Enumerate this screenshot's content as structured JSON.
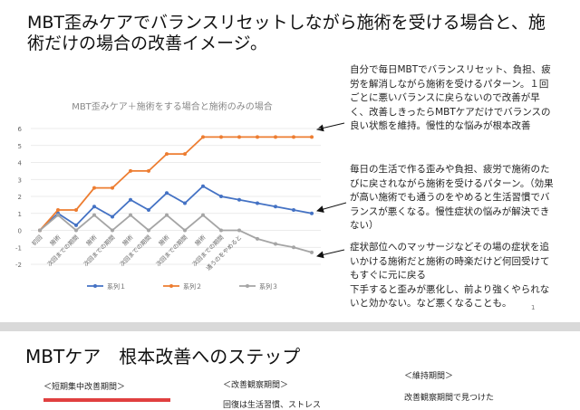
{
  "slide1": {
    "title": "MBT歪みケアでバランスリセットしながら施術を受ける場合と、施術だけの場合の改善イメージ。",
    "notes": [
      "自分で毎日MBTでバランスリセット、負担、疲労を解消しながら施術を受けるパターン。１回ごとに悪いバランスに戻らないので改善が早く、改善しきったらMBTケアだけでバランスの良い状態を維持。慢性的な悩みが根本改善",
      "毎日の生活で作る歪みや負担、疲労で施術のたびに戻されながら施術を受けるパターン。（効果が高い施術でも通うのをやめると生活習慣でバランスが悪くなる。慢性症状の悩みが解決できない）",
      "症状部位へのマッサージなどその場の症状を追いかける施術だと施術の時楽だけど何回受けてもすぐに元に戻る",
      "下手すると歪みが悪化し、前より強くやられないと効かない。など悪くなることも。"
    ],
    "page_number": "1"
  },
  "chart_data": {
    "type": "line",
    "title": "MBT歪みケア＋施術をする場合と施術のみの場合",
    "categories": [
      "初回",
      "施術",
      "次回までの期間",
      "施術",
      "次回までの期間",
      "施術",
      "次回までの期間",
      "施術",
      "次回までの期間",
      "施術",
      "次回までの期間",
      "通うのをやめると",
      null,
      null,
      null,
      null
    ],
    "series": [
      {
        "name": "系列１",
        "color": "#4472c4",
        "values": [
          0,
          1.0,
          0.3,
          1.4,
          0.8,
          1.8,
          1.2,
          2.2,
          1.6,
          2.6,
          2.0,
          1.8,
          1.6,
          1.4,
          1.2,
          1.0
        ]
      },
      {
        "name": "系列２",
        "color": "#ed7d31",
        "values": [
          0,
          1.2,
          1.2,
          2.5,
          2.5,
          3.5,
          3.5,
          4.5,
          4.5,
          5.5,
          5.5,
          5.5,
          5.5,
          5.5,
          5.5,
          5.5
        ]
      },
      {
        "name": "系列３",
        "color": "#a5a5a5",
        "values": [
          0,
          0.9,
          0,
          0.9,
          0,
          0.9,
          0,
          0.9,
          0,
          0.9,
          0,
          0,
          -0.5,
          -0.8,
          -1.0,
          -1.3
        ]
      }
    ],
    "ylim": [
      -2,
      6
    ],
    "yticks": [
      -2,
      -1,
      0,
      1,
      2,
      3,
      4,
      5,
      6
    ],
    "grid": true,
    "legend": "bottom"
  },
  "slide2": {
    "title": "MBTケア　根本改善へのステップ",
    "steps": [
      "＜短期集中改善期間＞",
      "＜改善観察期間＞",
      "＜維持期間＞"
    ],
    "step_texts": [
      "回復は生活習慣、ストレス",
      "改善観察期間で見つけた"
    ]
  }
}
